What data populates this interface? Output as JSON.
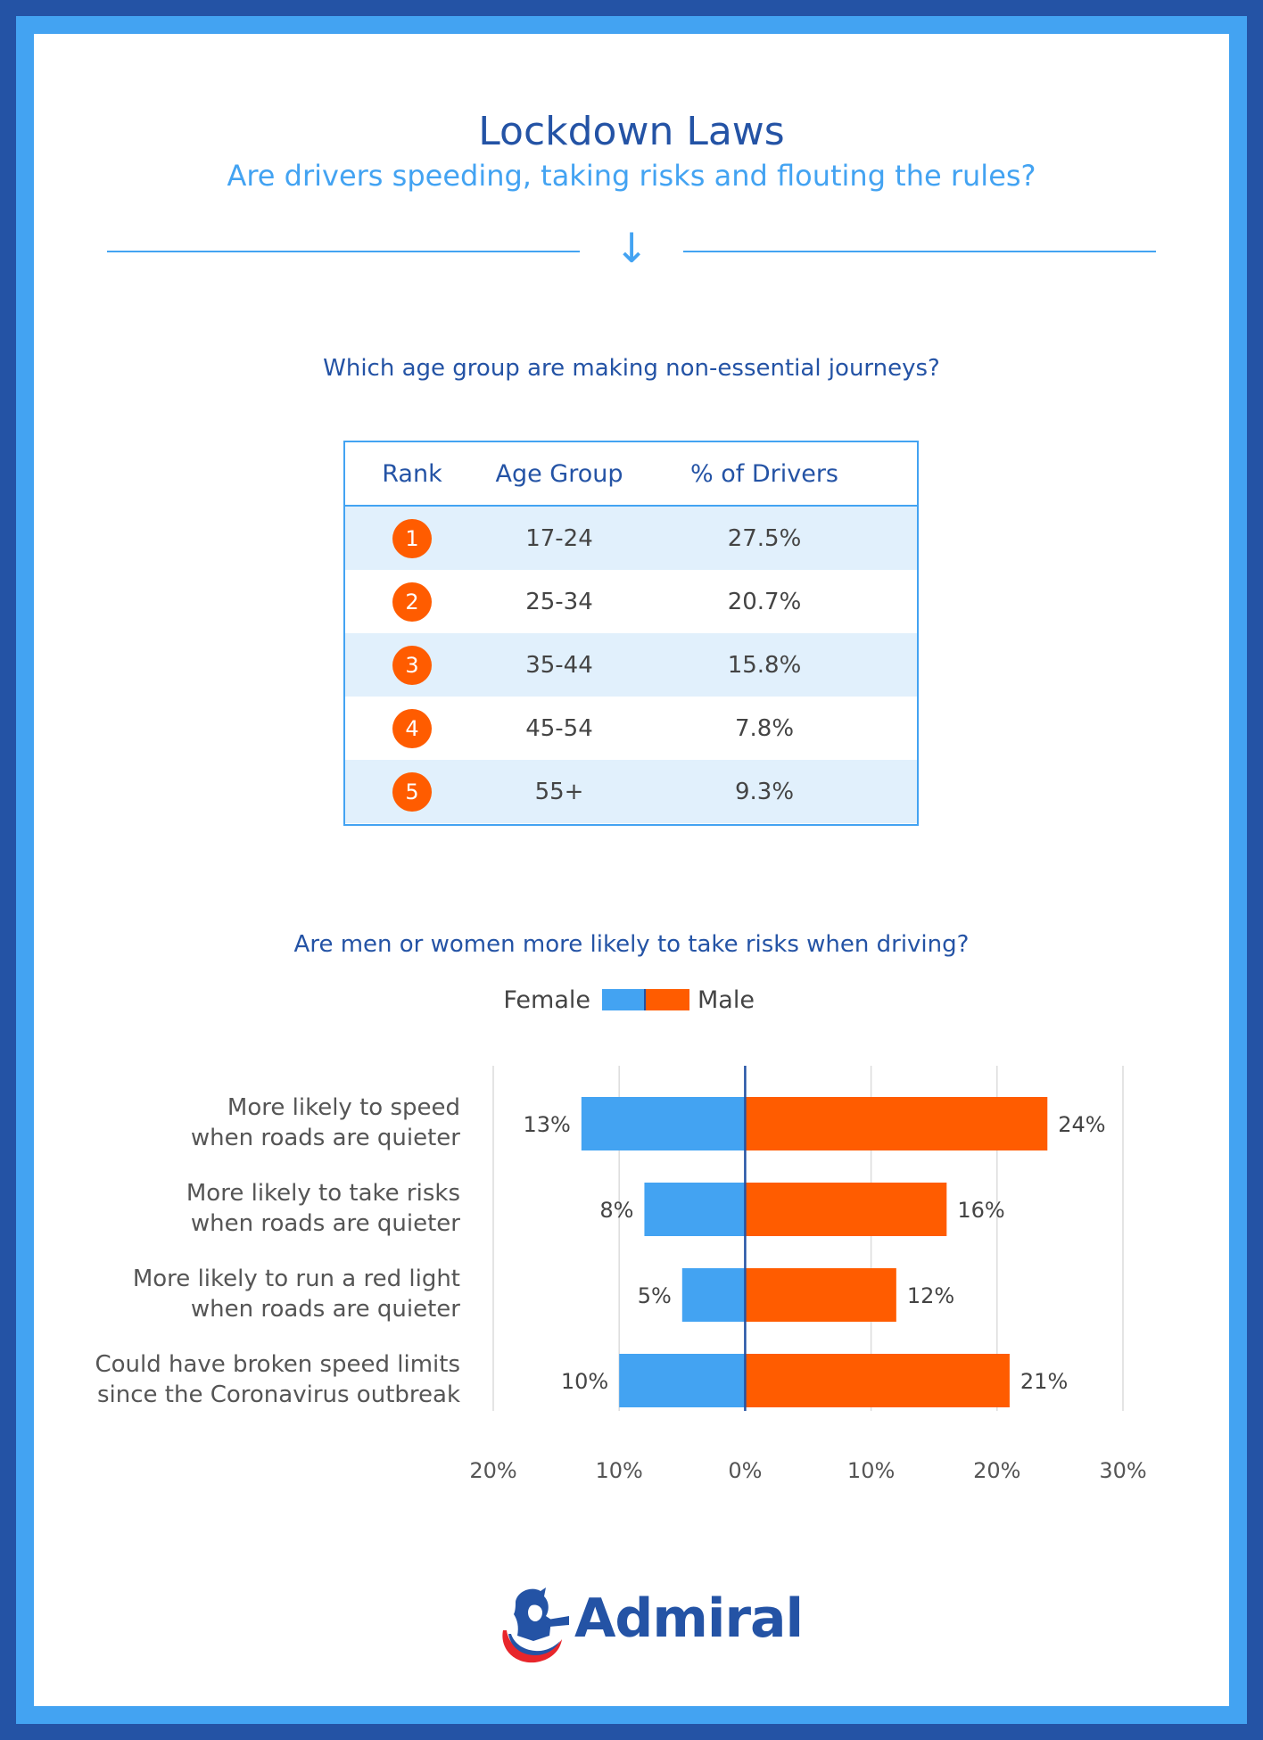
{
  "header": {
    "title": "Lockdown Laws",
    "subtitle": "Are drivers speeding, taking risks and flouting the rules?",
    "arrow": "↓"
  },
  "age_section": {
    "question": "Which age group are making non-essential journeys?",
    "columns": [
      "Rank",
      "Age Group",
      "% of Drivers"
    ],
    "rows": [
      {
        "rank": "1",
        "age": "17-24",
        "pct": "27.5%"
      },
      {
        "rank": "2",
        "age": "25-34",
        "pct": "20.7%"
      },
      {
        "rank": "3",
        "age": "35-44",
        "pct": "15.8%"
      },
      {
        "rank": "4",
        "age": "45-54",
        "pct": "7.8%"
      },
      {
        "rank": "5",
        "age": "55+",
        "pct": "9.3%"
      }
    ]
  },
  "gender_section": {
    "question": "Are men or women more likely to take risks when driving?",
    "legend_female": "Female",
    "legend_male": "Male"
  },
  "colors": {
    "female": "#43a3f2",
    "male": "#ff5c00",
    "accent": "#2453a5",
    "light_accent": "#43a3f2",
    "badge": "#ff5c00"
  },
  "chart_data": [
    {
      "type": "table",
      "title": "Which age group are making non-essential journeys?",
      "columns": [
        "Rank",
        "Age Group",
        "% of Drivers"
      ],
      "categories": [
        "17-24",
        "25-34",
        "35-44",
        "45-54",
        "55+"
      ],
      "values": [
        27.5,
        20.7,
        15.8,
        7.8,
        9.3
      ]
    },
    {
      "type": "bar",
      "orientation": "horizontal-diverging",
      "title": "Are men or women more likely to take risks when driving?",
      "categories": [
        [
          "More likely to speed",
          "when roads are quieter"
        ],
        [
          "More likely to take risks",
          "when roads are quieter"
        ],
        [
          "More likely to run a red light",
          "when roads are quieter"
        ],
        [
          "Could have broken speed limits",
          "since the Coronavirus outbreak"
        ]
      ],
      "series": [
        {
          "name": "Female",
          "values": [
            13,
            8,
            5,
            10
          ],
          "labels": [
            "13%",
            "8%",
            "5%",
            "10%"
          ]
        },
        {
          "name": "Male",
          "values": [
            24,
            16,
            12,
            21
          ],
          "labels": [
            "24%",
            "16%",
            "12%",
            "21%"
          ]
        }
      ],
      "xlim": [
        -20,
        30
      ],
      "ticks": [
        -20,
        -10,
        0,
        10,
        20,
        30
      ],
      "tick_labels": [
        "20%",
        "10%",
        "0%",
        "10%",
        "20%",
        "30%"
      ],
      "grid": true,
      "legend": "top-center"
    }
  ],
  "brand": {
    "name": "Admiral"
  }
}
